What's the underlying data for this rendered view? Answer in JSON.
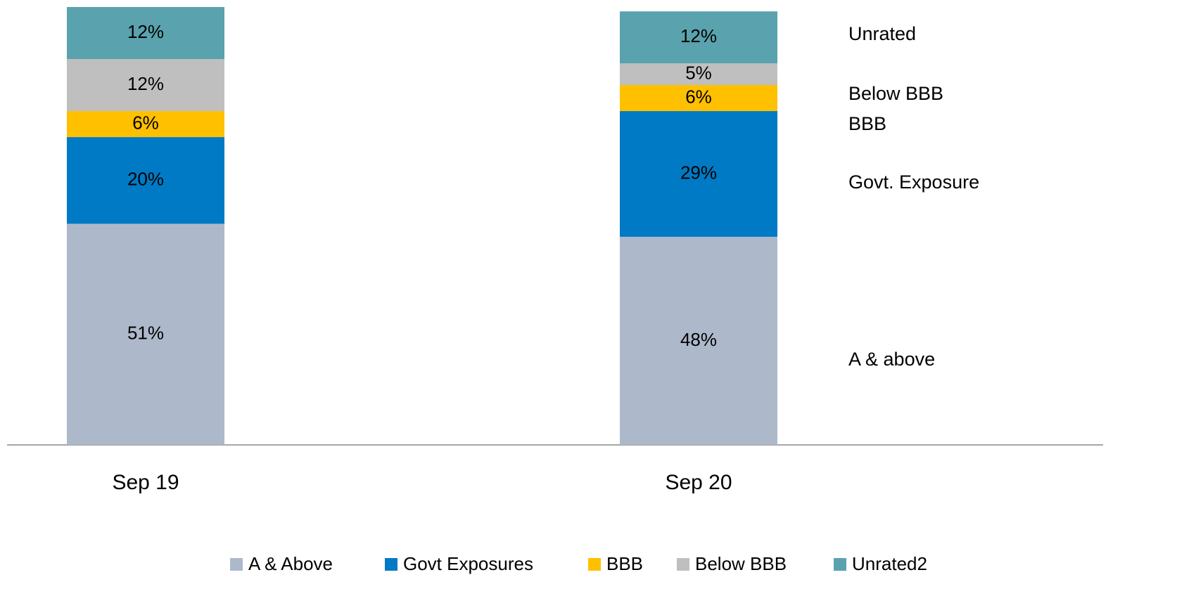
{
  "chart_data": {
    "type": "stacked-bar",
    "categories": [
      "Sep 19",
      "Sep 20"
    ],
    "series": [
      {
        "name": "A & Above",
        "color": "#adb9ca",
        "values": [
          51,
          48
        ],
        "value_labels": [
          "51%",
          "48%"
        ]
      },
      {
        "name": "Govt Exposures",
        "color": "#007ac5",
        "values": [
          20,
          29
        ],
        "value_labels": [
          "20%",
          "29%"
        ]
      },
      {
        "name": "BBB",
        "color": "#ffc000",
        "values": [
          6,
          6
        ],
        "value_labels": [
          "6%",
          "6%"
        ]
      },
      {
        "name": "Below BBB",
        "color": "#bfbfbf",
        "values": [
          12,
          5
        ],
        "value_labels": [
          "12%",
          "5%"
        ]
      },
      {
        "name": "Unrated2",
        "color": "#5aa2ae",
        "values": [
          12,
          12
        ],
        "value_labels": [
          "12%",
          "12%"
        ]
      }
    ],
    "annotations": [
      "Unrated",
      "Below BBB",
      "BBB",
      "Govt. Exposure",
      "A & above"
    ],
    "legend": "bottom"
  }
}
